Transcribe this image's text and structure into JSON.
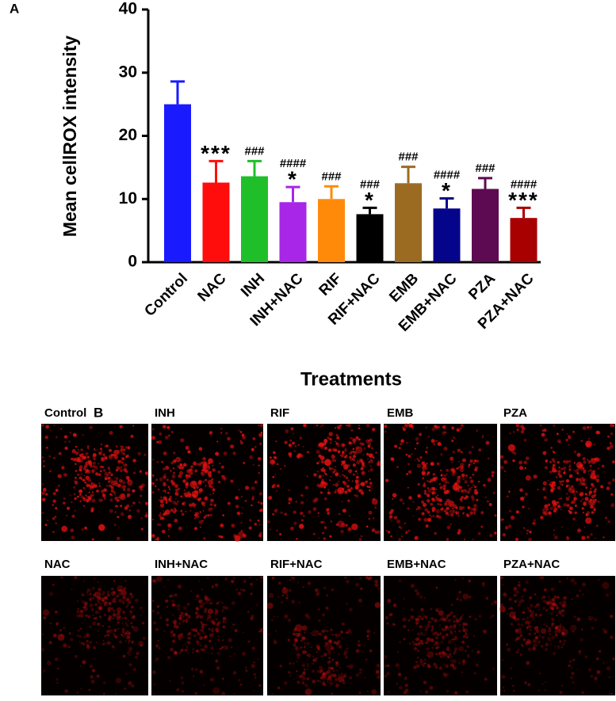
{
  "chart_data": {
    "type": "bar",
    "panel_label": "A",
    "ylabel": "Mean cellROX intensity",
    "xlabel": "Treatments",
    "categories": [
      "Control",
      "NAC",
      "INH",
      "INH+NAC",
      "RIF",
      "RIF+NAC",
      "EMB",
      "EMB+NAC",
      "PZA",
      "PZA+NAC"
    ],
    "values": [
      25.0,
      12.6,
      13.6,
      9.5,
      10.0,
      7.6,
      12.5,
      8.5,
      11.6,
      7.0
    ],
    "errors": [
      3.6,
      3.4,
      2.4,
      2.4,
      2.0,
      1.0,
      2.6,
      1.6,
      1.7,
      1.6
    ],
    "colors": [
      "#1a1aff",
      "#ff0d0d",
      "#1fbf2a",
      "#a726e8",
      "#ff8a0a",
      "#000000",
      "#9c6b22",
      "#05058c",
      "#5e0a52",
      "#a80000"
    ],
    "annotations": [
      null,
      [
        "***"
      ],
      [
        "###"
      ],
      [
        "####",
        "*"
      ],
      [
        "###"
      ],
      [
        "###",
        "*"
      ],
      [
        "###"
      ],
      [
        "####",
        "*"
      ],
      [
        "###"
      ],
      [
        "####",
        "***"
      ]
    ],
    "ylim": [
      0,
      40
    ],
    "yticks": [
      0,
      10,
      20,
      30,
      40
    ]
  },
  "panel_b": {
    "label": "B",
    "top_row": [
      "Control",
      "INH",
      "RIF",
      "EMB",
      "PZA"
    ],
    "bottom_row": [
      "NAC",
      "INH+NAC",
      "RIF+NAC",
      "EMB+NAC",
      "PZA+NAC"
    ]
  }
}
